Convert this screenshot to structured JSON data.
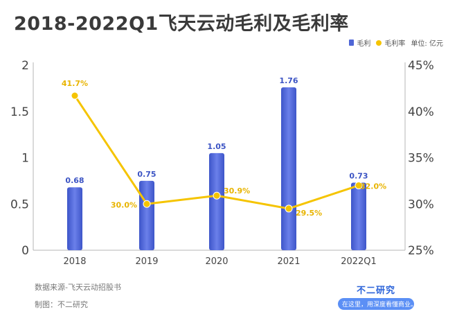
{
  "title": "2018-2022Q1飞天云动毛利及毛利率",
  "legend": {
    "series1": "毛利",
    "series2": "毛利率",
    "unit": "单位: 亿元"
  },
  "colors": {
    "bar": "#4f66d6",
    "line": "#f5c400",
    "bar_label": "#3c54c4",
    "line_label": "#e8b400",
    "axis_text": "#444444"
  },
  "chart_data": {
    "type": "bar+line",
    "categories": [
      "2018",
      "2019",
      "2020",
      "2021",
      "2022Q1"
    ],
    "series": [
      {
        "name": "毛利",
        "type": "bar",
        "axis": "left",
        "values": [
          0.68,
          0.75,
          1.05,
          1.76,
          0.73
        ],
        "labels": [
          "0.68",
          "0.75",
          "1.05",
          "1.76",
          "0.73"
        ]
      },
      {
        "name": "毛利率",
        "type": "line",
        "axis": "right",
        "values": [
          41.7,
          30.0,
          30.9,
          29.5,
          32.0
        ],
        "labels": [
          "41.7%",
          "30.0%",
          "30.9%",
          "29.5%",
          "32.0%"
        ]
      }
    ],
    "y_left": {
      "range": [
        0,
        2
      ],
      "ticks": [
        "0",
        "0.5",
        "1",
        "1.5",
        "2"
      ],
      "tick_values": [
        0,
        0.5,
        1,
        1.5,
        2
      ]
    },
    "y_right": {
      "range": [
        25,
        45
      ],
      "ticks": [
        "25%",
        "30%",
        "35%",
        "40%",
        "45%"
      ],
      "tick_values": [
        25,
        30,
        35,
        40,
        45
      ]
    },
    "legend_position": "top-right",
    "grid": false
  },
  "footer": {
    "source": "数据来源-飞天云动招股书",
    "author": "制图：不二研究",
    "brand_name": "不二研究",
    "brand_slogan": "在这里，用深度看懂商业。"
  }
}
